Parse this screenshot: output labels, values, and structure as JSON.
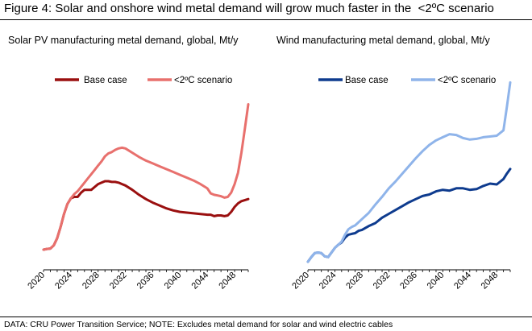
{
  "figure": {
    "title": "Figure 4: Solar and onshore wind metal demand will grow much faster in the  <2ºC scenario",
    "footnote": "DATA: CRU Power Transition Service; NOTE: Excludes metal demand for solar and wind electric cables"
  },
  "colors": {
    "solar_base": "#9a0f0f",
    "solar_2c": "#e8706d",
    "wind_base": "#0e3b8e",
    "wind_2c": "#8fb4ea",
    "axis": "#000000"
  },
  "chart_data": [
    {
      "id": "solar",
      "type": "line",
      "title": "Solar PV manufacturing metal demand, global, Mt/y",
      "xlabel": "",
      "ylabel": "",
      "xlim": [
        2020,
        2050
      ],
      "ylim": [
        0,
        10
      ],
      "xticks": [
        2020,
        2024,
        2028,
        2032,
        2036,
        2040,
        2044,
        2048
      ],
      "legend_position": "top",
      "grid": false,
      "series": [
        {
          "name": "Base case",
          "color_key": "solar_base",
          "x": [
            2020,
            2020.5,
            2021,
            2021.5,
            2022,
            2022.5,
            2023,
            2023.5,
            2024,
            2024.5,
            2025,
            2025.5,
            2026,
            2026.5,
            2027,
            2027.5,
            2028,
            2028.5,
            2029,
            2029.5,
            2030,
            2030.5,
            2031,
            2031.5,
            2032,
            2033,
            2034,
            2035,
            2036,
            2037,
            2038,
            2039,
            2040,
            2041,
            2042,
            2043,
            2044,
            2044.5,
            2045,
            2045.5,
            2046,
            2046.5,
            2047,
            2047.5,
            2048,
            2048.5,
            2049,
            2050
          ],
          "y": [
            0.0,
            0.05,
            0.08,
            0.3,
            0.8,
            1.6,
            2.5,
            3.2,
            3.6,
            3.7,
            3.7,
            4.0,
            4.2,
            4.2,
            4.2,
            4.4,
            4.6,
            4.7,
            4.8,
            4.8,
            4.75,
            4.75,
            4.7,
            4.6,
            4.5,
            4.2,
            3.85,
            3.55,
            3.3,
            3.1,
            2.9,
            2.75,
            2.65,
            2.6,
            2.55,
            2.5,
            2.45,
            2.45,
            2.35,
            2.4,
            2.4,
            2.35,
            2.4,
            2.65,
            3.0,
            3.25,
            3.4,
            3.55
          ]
        },
        {
          "name": "<2ºC scenario",
          "color_key": "solar_2c",
          "x": [
            2020,
            2020.5,
            2021,
            2021.5,
            2022,
            2022.5,
            2023,
            2023.5,
            2024,
            2024.5,
            2025,
            2025.5,
            2026,
            2026.5,
            2027,
            2027.5,
            2028,
            2028.5,
            2029,
            2029.5,
            2030,
            2030.5,
            2031,
            2031.5,
            2032,
            2033,
            2034,
            2035,
            2036,
            2037,
            2038,
            2039,
            2040,
            2041,
            2042,
            2043,
            2044,
            2044.5,
            2045,
            2045.5,
            2046,
            2046.5,
            2047,
            2047.5,
            2048,
            2048.5,
            2049,
            2049.5,
            2050
          ],
          "y": [
            0.0,
            0.05,
            0.08,
            0.3,
            0.8,
            1.6,
            2.5,
            3.2,
            3.6,
            3.9,
            4.1,
            4.4,
            4.7,
            5.0,
            5.3,
            5.6,
            5.9,
            6.2,
            6.55,
            6.75,
            6.85,
            7.0,
            7.1,
            7.15,
            7.1,
            6.8,
            6.5,
            6.25,
            6.05,
            5.85,
            5.65,
            5.45,
            5.25,
            5.05,
            4.85,
            4.6,
            4.3,
            3.95,
            3.85,
            3.8,
            3.75,
            3.65,
            3.7,
            4.0,
            4.6,
            5.4,
            6.8,
            8.5,
            10.2
          ]
        }
      ]
    },
    {
      "id": "wind",
      "type": "line",
      "title": "Wind manufacturing metal demand, global, Mt/y",
      "xlabel": "",
      "ylabel": "",
      "xlim": [
        2020,
        2050
      ],
      "ylim": [
        0,
        10
      ],
      "xticks": [
        2020,
        2024,
        2028,
        2032,
        2036,
        2040,
        2044,
        2048
      ],
      "legend_position": "top",
      "grid": false,
      "series": [
        {
          "name": "Base case",
          "color_key": "wind_base",
          "x": [
            2020,
            2020.5,
            2021,
            2021.5,
            2022,
            2022.5,
            2023,
            2023.5,
            2024,
            2024.5,
            2025,
            2025.5,
            2026,
            2026.5,
            2027,
            2027.5,
            2028,
            2029,
            2030,
            2031,
            2032,
            2033,
            2034,
            2035,
            2036,
            2037,
            2038,
            2039,
            2040,
            2041,
            2042,
            2043,
            2044,
            2045,
            2046,
            2047,
            2048,
            2049,
            2049.5,
            2050
          ],
          "y": [
            0.0,
            0.3,
            0.55,
            0.6,
            0.55,
            0.35,
            0.3,
            0.6,
            0.9,
            1.1,
            1.25,
            1.55,
            1.75,
            1.8,
            1.85,
            2.0,
            2.05,
            2.3,
            2.5,
            2.85,
            3.1,
            3.35,
            3.6,
            3.85,
            4.05,
            4.25,
            4.35,
            4.55,
            4.65,
            4.6,
            4.75,
            4.75,
            4.65,
            4.7,
            4.9,
            5.05,
            5.0,
            5.35,
            5.7,
            6.0
          ]
        },
        {
          "name": "<2ºC scenario",
          "color_key": "wind_2c",
          "x": [
            2020,
            2020.5,
            2021,
            2021.5,
            2022,
            2022.5,
            2023,
            2023.5,
            2024,
            2024.5,
            2025,
            2025.5,
            2026,
            2026.5,
            2027,
            2027.5,
            2028,
            2029,
            2030,
            2031,
            2032,
            2033,
            2034,
            2035,
            2036,
            2037,
            2038,
            2039,
            2040,
            2041,
            2042,
            2043,
            2044,
            2045,
            2046,
            2047,
            2048,
            2049,
            2049.5,
            2050
          ],
          "y": [
            0.0,
            0.3,
            0.55,
            0.6,
            0.55,
            0.35,
            0.3,
            0.6,
            0.9,
            1.1,
            1.3,
            1.75,
            2.1,
            2.25,
            2.35,
            2.55,
            2.75,
            3.15,
            3.7,
            4.2,
            4.75,
            5.2,
            5.7,
            6.2,
            6.7,
            7.15,
            7.55,
            7.85,
            8.05,
            8.25,
            8.2,
            8.0,
            7.9,
            7.95,
            8.05,
            8.1,
            8.15,
            8.5,
            10.0,
            11.6
          ]
        }
      ]
    }
  ]
}
